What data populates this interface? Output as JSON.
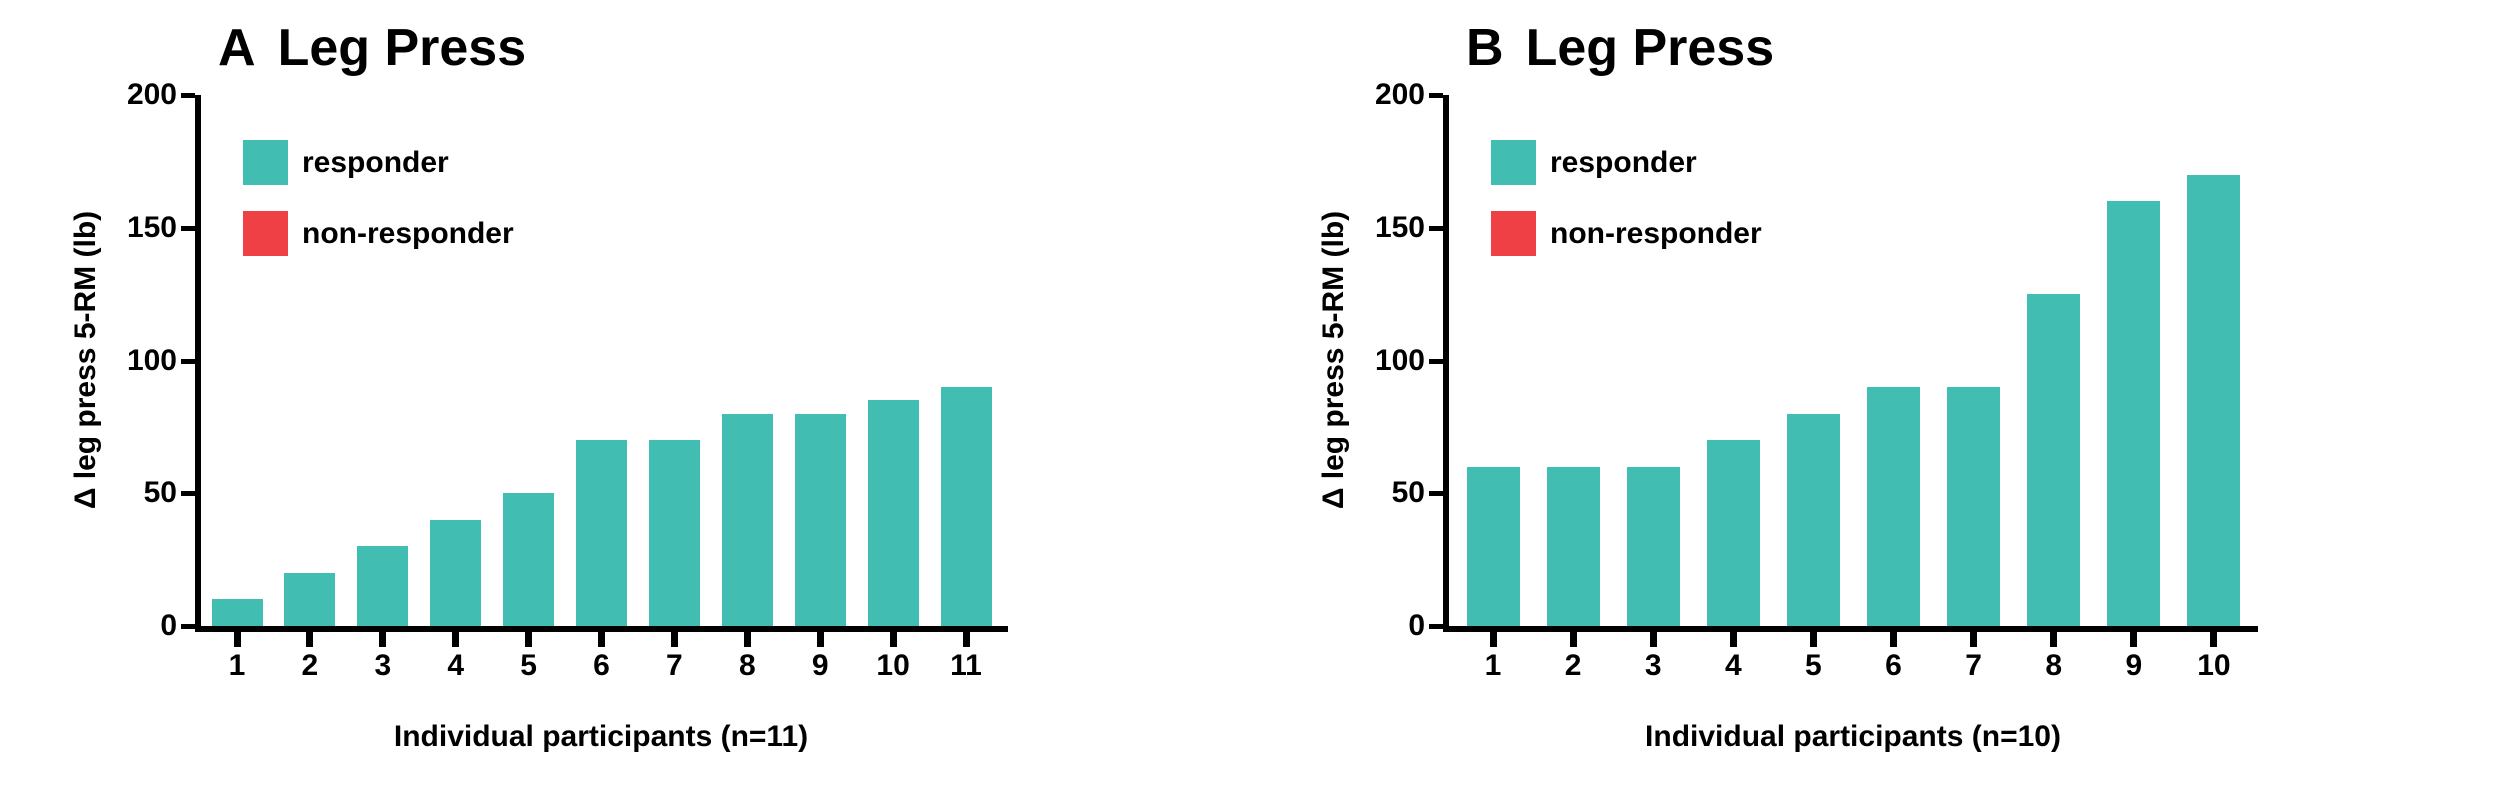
{
  "figure": {
    "background": "#ffffff"
  },
  "colors": {
    "responder": "#41BDB2",
    "non_responder": "#EF4145",
    "axis": "#000000"
  },
  "chart_data": [
    {
      "type": "bar",
      "panel_label": "A",
      "title": "Leg Press",
      "ylabel": "Δ leg press 5-RM (lb)",
      "xlabel": "Individual participants (n=11)",
      "categories": [
        "1",
        "2",
        "3",
        "4",
        "5",
        "6",
        "7",
        "8",
        "9",
        "10",
        "11"
      ],
      "series": [
        {
          "name": "responder",
          "values": [
            10,
            20,
            30,
            40,
            50,
            70,
            70,
            80,
            80,
            85,
            90
          ]
        }
      ],
      "ylim": [
        0,
        200
      ],
      "yticks": [
        0,
        50,
        100,
        150,
        200
      ],
      "grid": false,
      "legend_position": "top-left-inside",
      "legend": [
        {
          "label": "responder",
          "color": "#41BDB2"
        },
        {
          "label": "non-responder",
          "color": "#EF4145"
        }
      ]
    },
    {
      "type": "bar",
      "panel_label": "B",
      "title": "Leg Press",
      "ylabel": "Δ leg press 5-RM (lb)",
      "xlabel": "Individual participants (n=10)",
      "categories": [
        "1",
        "2",
        "3",
        "4",
        "5",
        "6",
        "7",
        "8",
        "9",
        "10"
      ],
      "series": [
        {
          "name": "responder",
          "values": [
            60,
            60,
            60,
            70,
            80,
            90,
            90,
            125,
            160,
            170
          ]
        }
      ],
      "ylim": [
        0,
        200
      ],
      "yticks": [
        0,
        50,
        100,
        150,
        200
      ],
      "grid": false,
      "legend_position": "top-left-inside",
      "legend": [
        {
          "label": "responder",
          "color": "#41BDB2"
        },
        {
          "label": "non-responder",
          "color": "#EF4145"
        }
      ]
    }
  ]
}
